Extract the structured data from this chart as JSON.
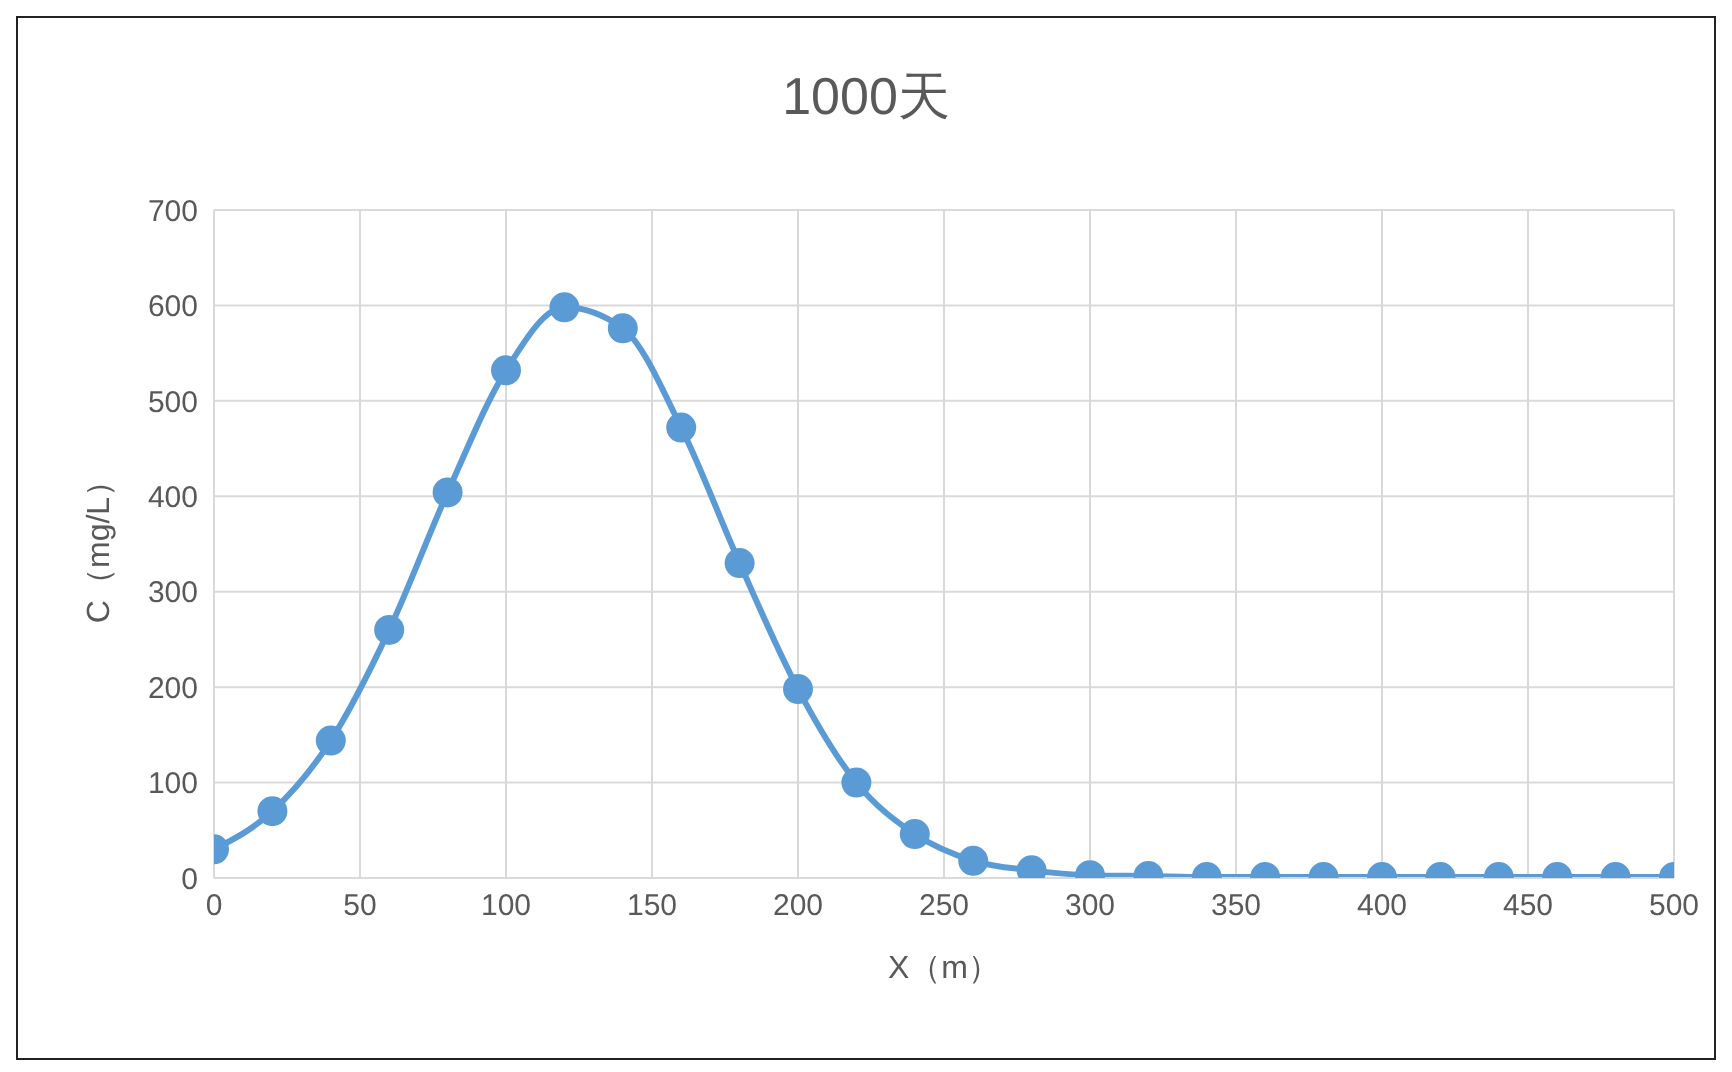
{
  "chart_data": {
    "type": "line",
    "title": "1000天",
    "xlabel": "X（m）",
    "ylabel": "C（mg/L）",
    "x": [
      0,
      20,
      40,
      60,
      80,
      100,
      120,
      140,
      160,
      180,
      200,
      220,
      240,
      260,
      280,
      300,
      320,
      340,
      360,
      380,
      400,
      420,
      440,
      460,
      480,
      500
    ],
    "series": [
      {
        "color": "#5b9bd5",
        "values": [
          30,
          70,
          144,
          260,
          404,
          532,
          598,
          576,
          472,
          330,
          198,
          100,
          46,
          18,
          8,
          3,
          2,
          1,
          1,
          1,
          1,
          1,
          1,
          1,
          1,
          1
        ]
      }
    ],
    "xlim": [
      0,
      500
    ],
    "xticks": [
      0,
      50,
      100,
      150,
      200,
      250,
      300,
      350,
      400,
      450,
      500
    ],
    "ylim": [
      0,
      700
    ],
    "yticks": [
      0,
      100,
      200,
      300,
      400,
      500,
      600,
      700
    ],
    "grid": true,
    "legend": false,
    "marker": "circle",
    "line_style": "solid"
  }
}
